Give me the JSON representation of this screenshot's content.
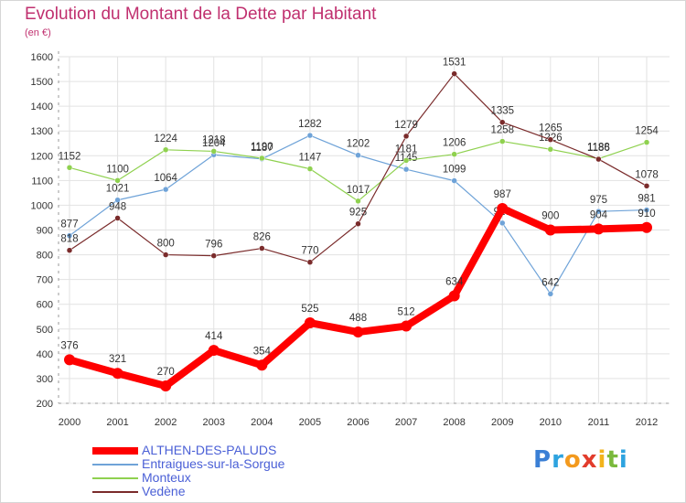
{
  "title": "Evolution du Montant de la Dette par Habitant",
  "subtitle": "(en €)",
  "chart_data": {
    "type": "line",
    "title": "Evolution du Montant de la Dette par Habitant",
    "subtitle": "(en €)",
    "xlabel": "",
    "ylabel": "",
    "x": [
      "2000",
      "2001",
      "2002",
      "2003",
      "2004",
      "2005",
      "2006",
      "2007",
      "2008",
      "2009",
      "2010",
      "2011",
      "2012"
    ],
    "ylim": [
      200,
      1600
    ],
    "yticks": [
      "200",
      "300",
      "400",
      "500",
      "600",
      "700",
      "800",
      "900",
      "1000",
      "1100",
      "1200",
      "1300",
      "1400",
      "1500",
      "1600"
    ],
    "grid": true,
    "legend_position": "bottom-left",
    "series": [
      {
        "name": "ALTHEN-DES-PALUDS",
        "color": "#ff0000",
        "values": [
          376,
          321,
          270,
          414,
          354,
          525,
          488,
          512,
          634,
          987,
          900,
          904,
          910
        ]
      },
      {
        "name": "Entraigues-sur-la-Sorgue",
        "color": "#6fa3d8",
        "values": [
          877,
          1021,
          1064,
          1204,
          1187,
          1282,
          1202,
          1145,
          1099,
          928,
          642,
          975,
          981
        ]
      },
      {
        "name": "Monteux",
        "color": "#8fd14f",
        "values": [
          1152,
          1100,
          1224,
          1218,
          1190,
          1147,
          1017,
          1181,
          1206,
          1258,
          1226,
          1188,
          1254
        ]
      },
      {
        "name": "Vedène",
        "color": "#7a2b2b",
        "values": [
          818,
          948,
          800,
          796,
          826,
          770,
          925,
          1279,
          1531,
          1335,
          1265,
          1186,
          1078
        ]
      }
    ]
  },
  "logo": {
    "letters": [
      "P",
      "r",
      "o",
      "x",
      "i",
      "t",
      "i"
    ],
    "colors": [
      "#3a7fd5",
      "#2ea3df",
      "#f39a1e",
      "#e23c2c",
      "#f2b31c",
      "#7ab93c",
      "#2ea3df"
    ]
  }
}
